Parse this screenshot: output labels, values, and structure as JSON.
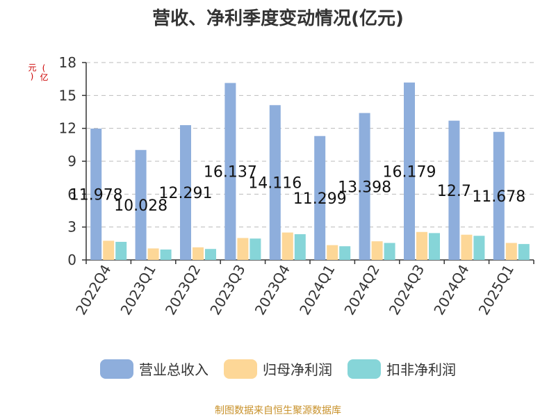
{
  "chart_data": {
    "type": "bar",
    "title": "营收、净利季度变动情况(亿元)",
    "y_unit_label": "(亿元)",
    "categories": [
      "2022Q4",
      "2023Q1",
      "2023Q2",
      "2023Q3",
      "2023Q4",
      "2024Q1",
      "2024Q2",
      "2024Q3",
      "2024Q4",
      "2025Q1"
    ],
    "series": [
      {
        "name": "营业总收入",
        "color": "#8eaedc",
        "values": [
          11.978,
          10.028,
          12.291,
          16.137,
          14.116,
          11.299,
          13.398,
          16.179,
          12.7,
          11.678
        ],
        "value_labels": [
          "11.978",
          "10.028",
          "12.291",
          "16.137",
          "14.116",
          "11.299",
          "13.398",
          "16.179",
          "12.7",
          "11.678"
        ]
      },
      {
        "name": "归母净利润",
        "color": "#fdd797",
        "values": [
          1.75,
          1.05,
          1.15,
          2.0,
          2.5,
          1.35,
          1.7,
          2.55,
          2.3,
          1.55
        ]
      },
      {
        "name": "扣非净利润",
        "color": "#86d5d8",
        "values": [
          1.65,
          0.95,
          1.0,
          1.95,
          2.35,
          1.25,
          1.55,
          2.45,
          2.2,
          1.45
        ]
      }
    ],
    "y_ticks": [
      "0",
      "3",
      "6",
      "9",
      "12",
      "15",
      "18"
    ],
    "ylim": [
      0,
      18
    ],
    "grid": true,
    "legend_position": "bottom",
    "label_series": "营业总收入"
  },
  "footer": {
    "source": "制图数据来自恒生聚源数据库"
  }
}
